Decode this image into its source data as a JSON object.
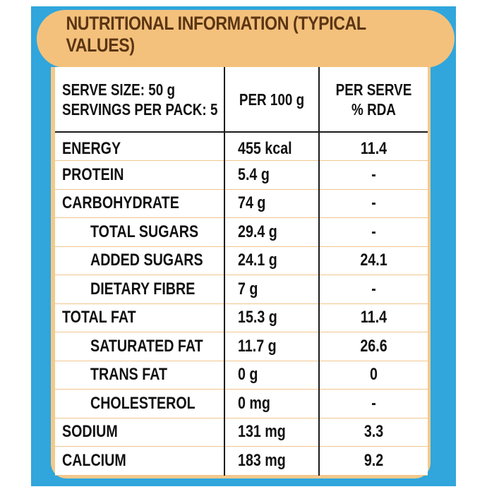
{
  "title": "NUTRITIONAL INFORMATION (TYPICAL VALUES)",
  "colors": {
    "frame_blue": "#30a6dc",
    "banner_tan": "#f3c17c",
    "title_brown": "#5b3513",
    "table_text": "#111111"
  },
  "header": {
    "serve_size": "SERVE SIZE: 50 g",
    "servings_per_pack": "SERVINGS PER PACK: 5",
    "per_100g": "PER 100 g",
    "per_serve_line1": "PER SERVE",
    "per_serve_line2": "% RDA"
  },
  "rows": [
    {
      "name": "ENERGY",
      "per_100g": "455 kcal",
      "per_serve_rda": "11.4",
      "indent": false
    },
    {
      "name": "PROTEIN",
      "per_100g": "5.4 g",
      "per_serve_rda": "-",
      "indent": false
    },
    {
      "name": "CARBOHYDRATE",
      "per_100g": "74 g",
      "per_serve_rda": "-",
      "indent": false
    },
    {
      "name": "TOTAL SUGARS",
      "per_100g": "29.4 g",
      "per_serve_rda": "-",
      "indent": true
    },
    {
      "name": "ADDED SUGARS",
      "per_100g": "24.1 g",
      "per_serve_rda": "24.1",
      "indent": true
    },
    {
      "name": "DIETARY FIBRE",
      "per_100g": "7 g",
      "per_serve_rda": "-",
      "indent": true
    },
    {
      "name": "TOTAL FAT",
      "per_100g": "15.3 g",
      "per_serve_rda": "11.4",
      "indent": false
    },
    {
      "name": "SATURATED FAT",
      "per_100g": "11.7 g",
      "per_serve_rda": "26.6",
      "indent": true
    },
    {
      "name": "TRANS FAT",
      "per_100g": "0 g",
      "per_serve_rda": "0",
      "indent": true
    },
    {
      "name": "CHOLESTEROL",
      "per_100g": "0 mg",
      "per_serve_rda": "-",
      "indent": true
    },
    {
      "name": "SODIUM",
      "per_100g": "131 mg",
      "per_serve_rda": "3.3",
      "indent": false
    },
    {
      "name": "CALCIUM",
      "per_100g": "183 mg",
      "per_serve_rda": "9.2",
      "indent": false
    }
  ]
}
